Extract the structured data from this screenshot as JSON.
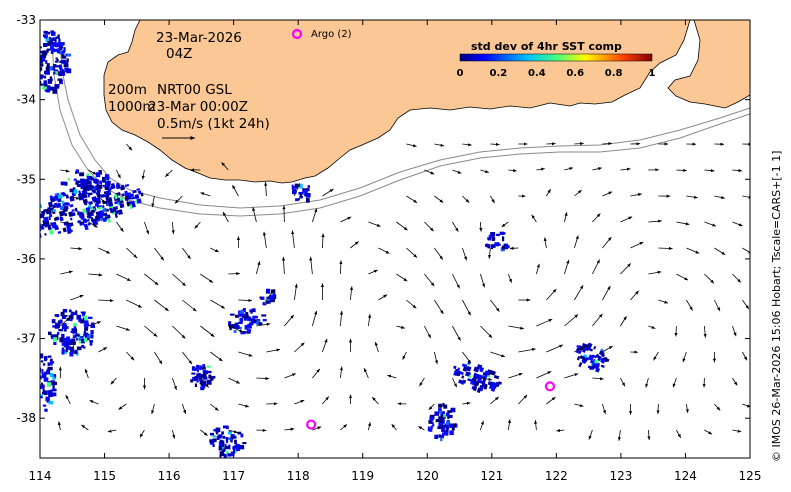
{
  "map": {
    "lon_range": [
      114,
      125
    ],
    "lat_range": [
      -38.5,
      -33
    ],
    "x_ticks": [
      "114",
      "115",
      "116",
      "117",
      "118",
      "119",
      "120",
      "121",
      "122",
      "123",
      "124",
      "125"
    ],
    "y_ticks": [
      "-33",
      "-34",
      "-35",
      "-36",
      "-37",
      "-38"
    ],
    "land_color": "#fbc895",
    "ocean_color": "#ffffff"
  },
  "annotations": {
    "date": "23-Mar-2026",
    "time": "04Z",
    "depth_200": "200m",
    "depth_1000": "1000m",
    "product": "NRT00 GSL",
    "product_time": "23-Mar 00:00Z",
    "scale_label": "0.5m/s (1kt 24h)"
  },
  "argo": {
    "legend_label": "Argo (2)",
    "color": "#ff00ff",
    "floats": [
      {
        "lon": 118.2,
        "lat": -38.08
      },
      {
        "lon": 121.9,
        "lat": -37.6
      }
    ]
  },
  "colorbar": {
    "title": "std dev of 4hr SST comp",
    "ticks": [
      "0",
      "0.2",
      "0.4",
      "0.6",
      "0.8",
      "1"
    ]
  },
  "credit": "© IMOS 26-Mar-2026 15:06 Hobart; Tscale=CARS+[-1 1]"
}
